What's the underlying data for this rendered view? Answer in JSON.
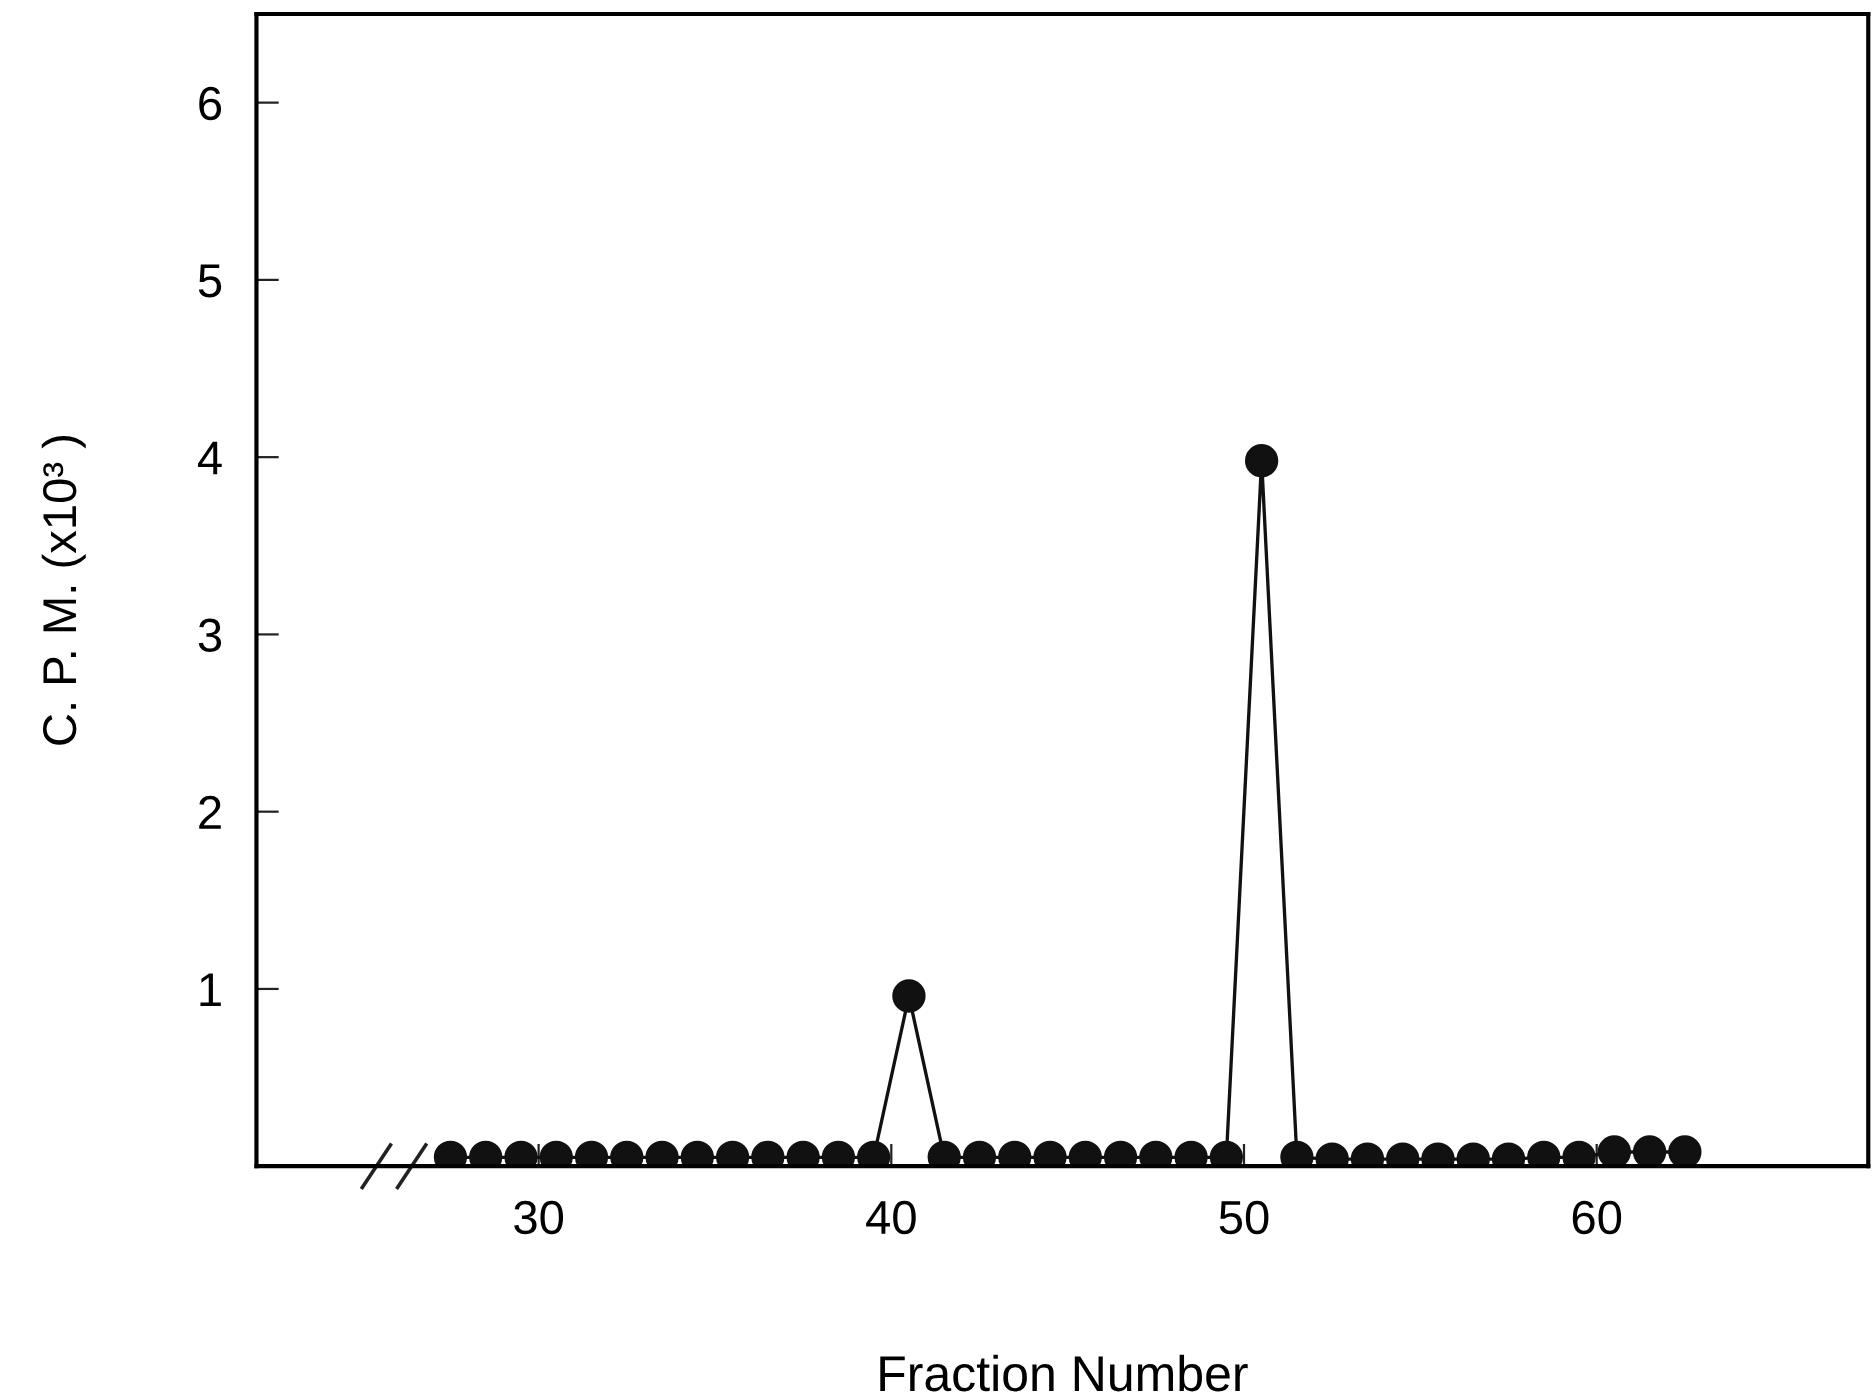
{
  "chart_data": {
    "type": "line",
    "xlabel": "Fraction Number",
    "ylabel": "C. P. M. (x10³ )",
    "x": [
      27.5,
      28.5,
      29.5,
      30.5,
      31.5,
      32.5,
      33.5,
      34.5,
      35.5,
      36.5,
      37.5,
      38.5,
      39.5,
      40.5,
      41.5,
      42.5,
      43.5,
      44.5,
      45.5,
      46.5,
      47.5,
      48.5,
      49.5,
      50.5,
      51.5,
      52.5,
      53.5,
      54.5,
      55.5,
      56.5,
      57.5,
      58.5,
      59.5,
      60.5,
      61.5,
      62.5
    ],
    "series": [
      {
        "color": "#111111",
        "values": [
          0.05,
          0.05,
          0.05,
          0.05,
          0.05,
          0.05,
          0.05,
          0.05,
          0.05,
          0.05,
          0.05,
          0.05,
          0.05,
          0.96,
          0.05,
          0.05,
          0.05,
          0.05,
          0.05,
          0.05,
          0.05,
          0.05,
          0.05,
          3.98,
          0.05,
          0.04,
          0.04,
          0.04,
          0.04,
          0.04,
          0.04,
          0.05,
          0.05,
          0.08,
          0.08,
          0.08
        ]
      }
    ],
    "xlim": [
      22,
      67.7
    ],
    "ylim": [
      0,
      6.5
    ],
    "xticks": [
      30,
      40,
      50,
      60
    ],
    "yticks": [
      1,
      2,
      3,
      4,
      5,
      6
    ],
    "marker": "circle",
    "line_style": "solid",
    "grid": false,
    "legend": false
  }
}
